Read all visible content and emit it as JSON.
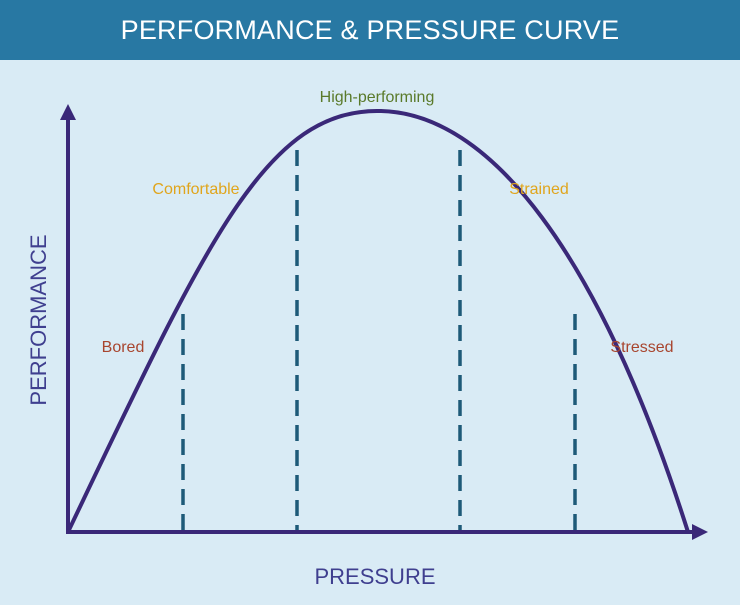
{
  "title": "PERFORMANCE & PRESSURE CURVE",
  "axes": {
    "x_label": "PRESSURE",
    "y_label": "PERFORMANCE"
  },
  "zones": {
    "bored": {
      "label": "Bored",
      "color": "#a8452e"
    },
    "comfortable": {
      "label": "Comfortable",
      "color": "#e0a51c"
    },
    "high_performing": {
      "label": "High-performing",
      "color": "#5a7a2a"
    },
    "strained": {
      "label": "Strained",
      "color": "#e0a51c"
    },
    "stressed": {
      "label": "Stressed",
      "color": "#a8452e"
    }
  },
  "colors": {
    "title_bar": "#2878a3",
    "background": "#d9ebf5",
    "curve": "#3a2878",
    "axis": "#3a2878",
    "dividers": "#1e5a78"
  }
}
